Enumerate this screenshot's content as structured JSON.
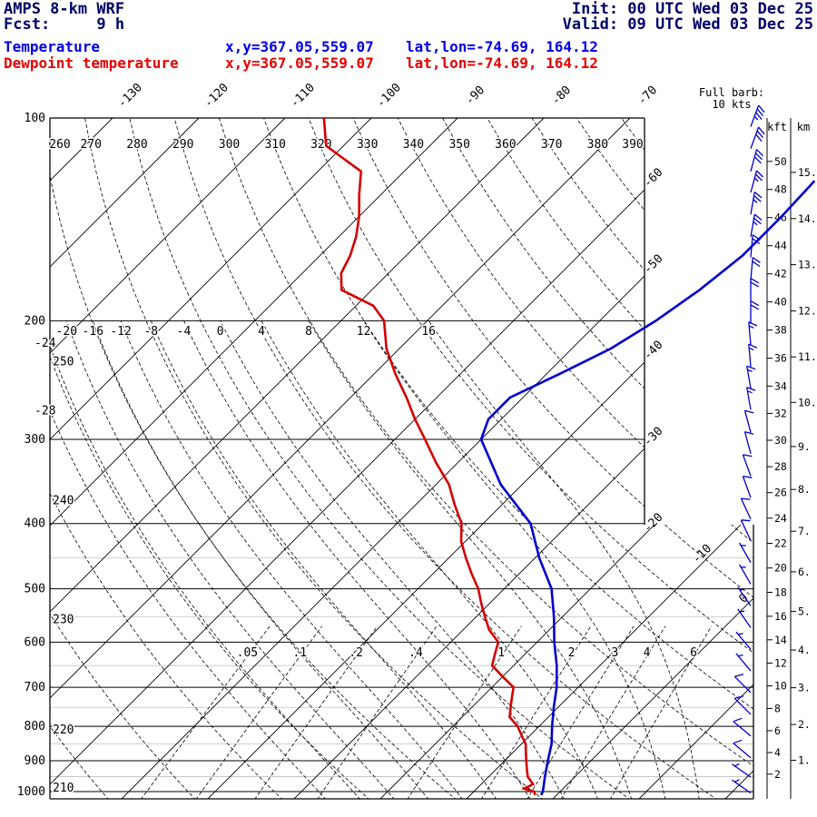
{
  "header": {
    "model": "AMPS 8-km WRF",
    "fcst": "Fcst:     9 h",
    "init": "Init: 00 UTC Wed 03 Dec 25",
    "valid": "Valid: 09 UTC Wed 03 Dec 25"
  },
  "legend": {
    "temperature": {
      "label": "Temperature",
      "xy": "x,y=367.05,559.07",
      "latlon": "lat,lon=-74.69, 164.12"
    },
    "dewpoint": {
      "label": "Dewpoint temperature",
      "xy": "x,y=367.05,559.07",
      "latlon": "lat,lon=-74.69, 164.12"
    }
  },
  "barb_legend": {
    "line1": "Full barb:",
    "line2": "10 kts"
  },
  "scales": {
    "kft_header": "kft",
    "km_header": "km",
    "kft_ticks": [
      50,
      48,
      46,
      44,
      42,
      40,
      38,
      36,
      34,
      32,
      30,
      28,
      26,
      24,
      22,
      20,
      18,
      16,
      14,
      12,
      10,
      8,
      6,
      4,
      2
    ],
    "km_ticks": [
      15,
      14,
      13,
      12,
      11,
      10,
      9,
      8,
      7,
      6,
      5,
      4,
      3,
      2,
      1
    ]
  },
  "colors": {
    "temperature": "#0000cc",
    "dewpoint": "#d40000",
    "header_text": "#000066",
    "legend_temperature": "#0000e6",
    "legend_dewpoint": "#e60000"
  },
  "chart_data": {
    "type": "skewt_logp_sounding",
    "pressure_units": "hPa",
    "temperature_units": "degC",
    "pressure_ticks": [
      100,
      200,
      300,
      400,
      500,
      600,
      700,
      800,
      900,
      1000
    ],
    "pressure_minor": [
      450,
      550,
      650,
      750,
      850,
      950
    ],
    "isotherm_step_c": 10,
    "isotherm_top_labels": [
      -130,
      -120,
      -110,
      -100,
      -90,
      -80,
      -70
    ],
    "isotherm_right_labels": [
      -60,
      -50,
      -40,
      -30,
      -20
    ],
    "isotherm_inner_labels": [
      -10,
      0
    ],
    "dry_adiabats_k": [
      210,
      220,
      230,
      240,
      250,
      260,
      270,
      280,
      290,
      300,
      310,
      320,
      330,
      340,
      350,
      360,
      370,
      380,
      390
    ],
    "dry_adiabat_top_labels": [
      260,
      270,
      280,
      290,
      300,
      310,
      320,
      330,
      340,
      350,
      360,
      370,
      380,
      390
    ],
    "dry_adiabat_left_labels": [
      250,
      240,
      230,
      220,
      210
    ],
    "moist_adiabats_c": [
      -28,
      -24,
      -20,
      -16,
      -12,
      -8,
      -4,
      0,
      4,
      8,
      12,
      16
    ],
    "mixing_ratio_gkg": [
      0.05,
      0.1,
      0.2,
      0.4,
      1,
      2,
      3,
      4,
      6
    ],
    "mixing_ratio_labels": [
      ".05",
      ".1",
      ".2",
      ".4",
      "1",
      "2",
      "3",
      "4",
      "6"
    ],
    "temperature_profile": {
      "points": [
        [
          1012,
          -1.8
        ],
        [
          1000,
          -2
        ],
        [
          950,
          -3.5
        ],
        [
          900,
          -5
        ],
        [
          850,
          -6.5
        ],
        [
          800,
          -8.5
        ],
        [
          750,
          -10.5
        ],
        [
          700,
          -12.5
        ],
        [
          650,
          -15
        ],
        [
          600,
          -18
        ],
        [
          550,
          -21
        ],
        [
          500,
          -24.5
        ],
        [
          450,
          -29.5
        ],
        [
          400,
          -34.5
        ],
        [
          350,
          -42.5
        ],
        [
          300,
          -50
        ],
        [
          280,
          -51.5
        ],
        [
          260,
          -51.5
        ],
        [
          240,
          -48.5
        ],
        [
          220,
          -45.5
        ],
        [
          200,
          -43.5
        ],
        [
          180,
          -42
        ],
        [
          160,
          -41
        ],
        [
          140,
          -41
        ],
        [
          124,
          -41.3
        ]
      ]
    },
    "dewpoint_profile": {
      "points": [
        [
          1012,
          -2.5
        ],
        [
          1000,
          -3
        ],
        [
          990,
          -4.5
        ],
        [
          975,
          -4
        ],
        [
          950,
          -5.5
        ],
        [
          925,
          -6.5
        ],
        [
          900,
          -7.5
        ],
        [
          875,
          -8.5
        ],
        [
          850,
          -9.5
        ],
        [
          825,
          -11
        ],
        [
          800,
          -12.5
        ],
        [
          775,
          -14.5
        ],
        [
          750,
          -15.5
        ],
        [
          725,
          -16.5
        ],
        [
          700,
          -17.5
        ],
        [
          675,
          -20
        ],
        [
          650,
          -22.5
        ],
        [
          625,
          -23.5
        ],
        [
          600,
          -24.5
        ],
        [
          575,
          -27
        ],
        [
          550,
          -29
        ],
        [
          525,
          -31
        ],
        [
          500,
          -33
        ],
        [
          475,
          -35.5
        ],
        [
          450,
          -38
        ],
        [
          425,
          -40.5
        ],
        [
          400,
          -42.5
        ],
        [
          375,
          -45.5
        ],
        [
          350,
          -48.5
        ],
        [
          325,
          -52.5
        ],
        [
          300,
          -56.5
        ],
        [
          280,
          -60
        ],
        [
          260,
          -63.5
        ],
        [
          240,
          -67.5
        ],
        [
          220,
          -71.5
        ],
        [
          200,
          -75
        ],
        [
          190,
          -78
        ],
        [
          180,
          -83.5
        ],
        [
          170,
          -85.5
        ],
        [
          160,
          -86.5
        ],
        [
          150,
          -88
        ],
        [
          140,
          -90
        ],
        [
          130,
          -92.5
        ],
        [
          120,
          -95
        ],
        [
          110,
          -102
        ],
        [
          100,
          -105.5
        ]
      ]
    },
    "wind_barbs_kts": [
      [
        103,
        20,
        35
      ],
      [
        111,
        20,
        30
      ],
      [
        120,
        15,
        30
      ],
      [
        129,
        15,
        25
      ],
      [
        139,
        10,
        25
      ],
      [
        150,
        10,
        25
      ],
      [
        161,
        5,
        20
      ],
      [
        174,
        5,
        20
      ],
      [
        187,
        0,
        20
      ],
      [
        202,
        0,
        20
      ],
      [
        217,
        355,
        15
      ],
      [
        234,
        355,
        15
      ],
      [
        252,
        350,
        15
      ],
      [
        271,
        350,
        15
      ],
      [
        293,
        345,
        10
      ],
      [
        315,
        345,
        10
      ],
      [
        340,
        340,
        10
      ],
      [
        366,
        340,
        10
      ],
      [
        394,
        335,
        10
      ],
      [
        424,
        335,
        10
      ],
      [
        457,
        330,
        5
      ],
      [
        492,
        330,
        5
      ],
      [
        530,
        325,
        5
      ],
      [
        571,
        325,
        5
      ],
      [
        615,
        320,
        5
      ],
      [
        662,
        320,
        5
      ],
      [
        713,
        315,
        10
      ],
      [
        768,
        315,
        10
      ],
      [
        827,
        310,
        10
      ],
      [
        891,
        310,
        10
      ],
      [
        952,
        305,
        5
      ],
      [
        1005,
        305,
        5
      ]
    ]
  }
}
